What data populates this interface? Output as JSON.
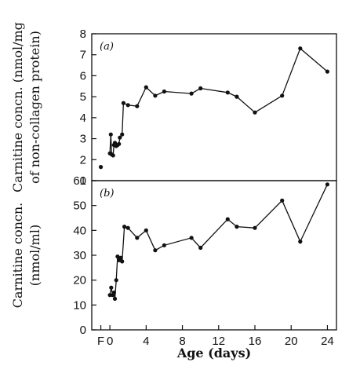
{
  "chart_data": [
    {
      "type": "line",
      "panel_label": "(a)",
      "ylabel": "Carnitine concn. (nmol/mg of non-collagen protein)",
      "ylim": [
        1,
        8
      ],
      "yticks": [
        1,
        2,
        3,
        4,
        5,
        6,
        7,
        8
      ],
      "xlim": [
        -2,
        25
      ],
      "grid": false,
      "fetal_point": {
        "x_label": "F",
        "y": 1.65
      },
      "series": [
        {
          "points": [
            [
              0,
              2.3
            ],
            [
              0.1,
              3.2
            ],
            [
              0.2,
              2.25
            ],
            [
              0.35,
              2.2
            ],
            [
              0.45,
              2.7
            ],
            [
              0.55,
              2.8
            ],
            [
              0.7,
              2.65
            ],
            [
              0.85,
              2.7
            ],
            [
              1.0,
              2.75
            ],
            [
              1.1,
              3.05
            ],
            [
              1.35,
              3.2
            ],
            [
              1.5,
              4.7
            ],
            [
              2,
              4.6
            ],
            [
              3,
              4.55
            ],
            [
              4,
              5.45
            ],
            [
              5,
              5.05
            ],
            [
              6,
              5.25
            ],
            [
              9,
              5.15
            ],
            [
              10,
              5.4
            ],
            [
              13,
              5.2
            ],
            [
              14,
              5.0
            ],
            [
              16,
              4.25
            ],
            [
              19,
              5.05
            ],
            [
              21,
              7.3
            ],
            [
              24,
              6.2
            ]
          ]
        }
      ]
    },
    {
      "type": "line",
      "panel_label": "(b)",
      "ylabel": "Carnitine concn. (nmol/ml)",
      "xlabel": "Age (days)",
      "ylim": [
        0,
        60
      ],
      "yticks": [
        0,
        10,
        20,
        30,
        40,
        50,
        60
      ],
      "xlim": [
        -2,
        25
      ],
      "xtick_labels": [
        "F",
        "0",
        "4",
        "8",
        "12",
        "16",
        "20",
        "24"
      ],
      "xtick_values": [
        -1,
        0,
        4,
        8,
        12,
        16,
        20,
        24
      ],
      "grid": false,
      "series": [
        {
          "points": [
            [
              0,
              14
            ],
            [
              0.15,
              17
            ],
            [
              0.3,
              14
            ],
            [
              0.45,
              15
            ],
            [
              0.55,
              12.5
            ],
            [
              0.7,
              20
            ],
            [
              0.85,
              29.5
            ],
            [
              1.0,
              28
            ],
            [
              1.2,
              29
            ],
            [
              1.35,
              27.5
            ],
            [
              1.6,
              41.5
            ],
            [
              2,
              41
            ],
            [
              3,
              37
            ],
            [
              4,
              40
            ],
            [
              5,
              32
            ],
            [
              6,
              34
            ],
            [
              9,
              37
            ],
            [
              10,
              33
            ],
            [
              13,
              44.5
            ],
            [
              14,
              41.5
            ],
            [
              16,
              41
            ],
            [
              19,
              52
            ],
            [
              21,
              35.5
            ],
            [
              24,
              58.5
            ]
          ]
        }
      ]
    }
  ]
}
